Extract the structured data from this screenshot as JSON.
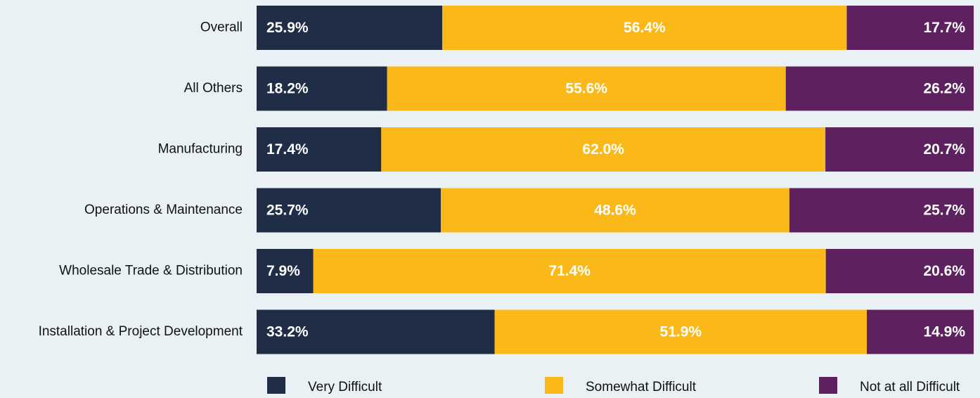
{
  "chart_data": {
    "type": "stacked-bar-horizontal",
    "categories": [
      "Overall",
      "All Others",
      "Manufacturing",
      "Operations & Maintenance",
      "Wholesale Trade & Distribution",
      "Installation & Project Development"
    ],
    "series": [
      {
        "name": "Very Difficult",
        "color": "#1f2d47",
        "values": [
          25.9,
          18.2,
          17.4,
          25.7,
          7.9,
          33.2
        ],
        "value_labels": [
          "25.9%",
          "18.2%",
          "17.4%",
          "25.7%",
          "7.9%",
          "33.2%"
        ]
      },
      {
        "name": "Somewhat Difficult",
        "color": "#fbb919",
        "values": [
          56.4,
          55.6,
          62.0,
          48.6,
          71.4,
          51.9
        ],
        "value_labels": [
          "56.4%",
          "55.6%",
          "62.0%",
          "48.6%",
          "71.4%",
          "51.9%"
        ]
      },
      {
        "name": "Not at all Difficult",
        "color": "#5e2160",
        "values": [
          17.7,
          26.2,
          20.7,
          25.7,
          20.6,
          14.9
        ],
        "value_labels": [
          "17.7%",
          "26.2%",
          "20.7%",
          "25.7%",
          "20.6%",
          "14.9%"
        ]
      }
    ]
  }
}
